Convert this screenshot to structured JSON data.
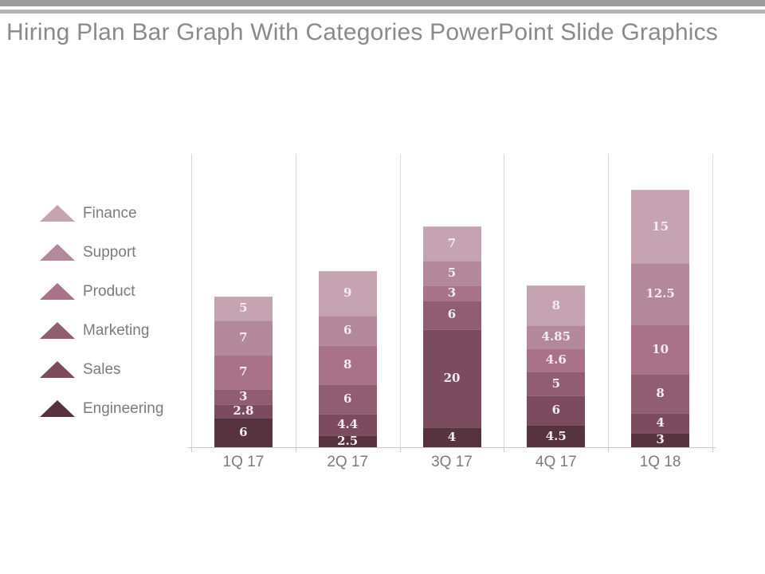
{
  "title": "Hiring Plan Bar Graph With Categories PowerPoint Slide Graphics",
  "colors": {
    "accent_bar_primary": "#9c9c9c",
    "accent_bar_secondary": "#b4b4b4",
    "title_text": "#8a8a8a",
    "axis_text": "#7b7b7b",
    "gridline": "#d8d8d8",
    "axis_line": "#c9c9c9",
    "data_label_text": "#f2ecef"
  },
  "legend": {
    "position": "left",
    "items": [
      {
        "label": "Finance",
        "color": "#c6a3b1",
        "icon": "triangle-icon"
      },
      {
        "label": "Support",
        "color": "#b4889b",
        "icon": "triangle-icon"
      },
      {
        "label": "Product",
        "color": "#a97288",
        "icon": "triangle-icon"
      },
      {
        "label": "Marketing",
        "color": "#915d71",
        "icon": "triangle-icon"
      },
      {
        "label": "Sales",
        "color": "#7c4b5e",
        "icon": "triangle-icon"
      },
      {
        "label": "Engineering",
        "color": "#57323f",
        "icon": "triangle-icon"
      }
    ]
  },
  "chart_data": {
    "type": "bar",
    "stacked": true,
    "title": "Hiring Plan Bar Graph With Categories PowerPoint Slide Graphics",
    "categories": [
      "1Q 17",
      "2Q 17",
      "3Q 17",
      "4Q 17",
      "1Q 18"
    ],
    "series": [
      {
        "name": "Finance",
        "color": "#c6a3b1",
        "values": [
          5,
          9,
          7,
          8,
          15
        ]
      },
      {
        "name": "Support",
        "color": "#b4889b",
        "values": [
          7,
          6,
          5,
          4.85,
          12.5
        ]
      },
      {
        "name": "Product",
        "color": "#a97288",
        "values": [
          7,
          8,
          3,
          4.6,
          10
        ]
      },
      {
        "name": "Marketing",
        "color": "#915d71",
        "values": [
          3,
          6,
          6,
          5,
          8
        ]
      },
      {
        "name": "Sales",
        "color": "#7c4b5e",
        "values": [
          2.8,
          4.4,
          20,
          6,
          4
        ]
      },
      {
        "name": "Engineering",
        "color": "#57323f",
        "values": [
          6,
          2.5,
          4,
          4.5,
          3
        ]
      }
    ],
    "totals": [
      30.8,
      35.9,
      45,
      32.95,
      52.5
    ],
    "xlabel": "",
    "ylabel": "",
    "ylim": [
      0,
      60
    ],
    "grid": "vertical-between-categories",
    "legend_position": "left",
    "data_labels": true
  }
}
